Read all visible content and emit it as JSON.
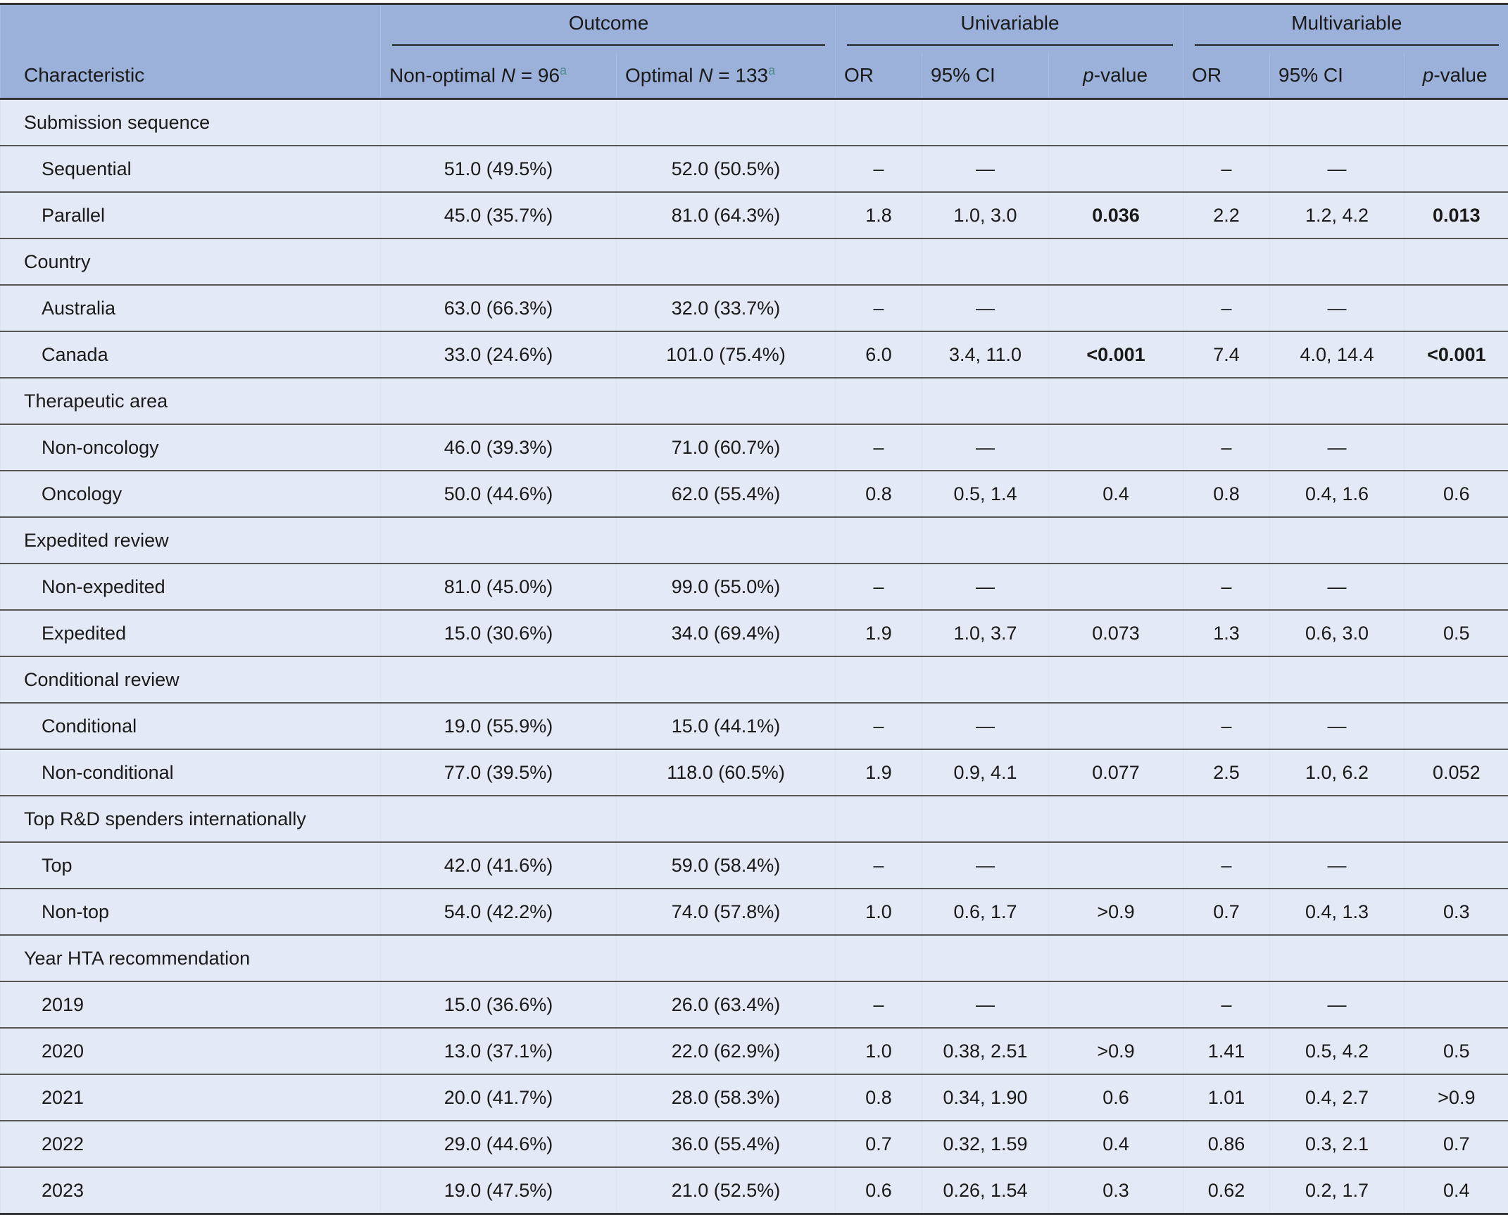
{
  "header": {
    "groups": {
      "outcome": "Outcome",
      "univariable": "Univariable",
      "multivariable": "Multivariable"
    },
    "columns": {
      "characteristic": "Characteristic",
      "non_optimal": "Non-optimal ",
      "non_optimal_n": "N",
      "non_optimal_n_value": " = 96",
      "non_optimal_note": "a",
      "optimal": "Optimal ",
      "optimal_n": "N",
      "optimal_n_value": " = 133",
      "optimal_note": "a",
      "uni_or": "OR",
      "uni_ci": "95% CI",
      "uni_p_italic": "p",
      "uni_p_rest": "-value",
      "multi_or": "OR",
      "multi_ci": "95% CI",
      "multi_p_italic": "p",
      "multi_p_rest": "-value"
    }
  },
  "colors": {
    "header_bg": "#9cb1da",
    "body_bg": "#e3e9f5",
    "footnote": "#4a8c8c"
  },
  "rows": [
    {
      "type": "group",
      "label": "Submission sequence"
    },
    {
      "type": "item",
      "label": "Sequential",
      "non_optimal": "51.0 (49.5%)",
      "optimal": "52.0 (50.5%)",
      "uni_or": "–",
      "uni_ci": "—",
      "uni_p": "",
      "multi_or": "–",
      "multi_ci": "—",
      "multi_p": ""
    },
    {
      "type": "item",
      "label": "Parallel",
      "non_optimal": "45.0 (35.7%)",
      "optimal": "81.0 (64.3%)",
      "uni_or": "1.8",
      "uni_ci": "1.0, 3.0",
      "uni_p": "0.036",
      "uni_p_bold": true,
      "multi_or": "2.2",
      "multi_ci": "1.2, 4.2",
      "multi_p": "0.013",
      "multi_p_bold": true
    },
    {
      "type": "group",
      "label": "Country"
    },
    {
      "type": "item",
      "label": "Australia",
      "non_optimal": "63.0 (66.3%)",
      "optimal": "32.0 (33.7%)",
      "uni_or": "–",
      "uni_ci": "—",
      "uni_p": "",
      "multi_or": "–",
      "multi_ci": "—",
      "multi_p": ""
    },
    {
      "type": "item",
      "label": "Canada",
      "non_optimal": "33.0 (24.6%)",
      "optimal": "101.0 (75.4%)",
      "uni_or": "6.0",
      "uni_ci": "3.4, 11.0",
      "uni_p": "<0.001",
      "uni_p_bold": true,
      "multi_or": "7.4",
      "multi_ci": "4.0, 14.4",
      "multi_p": "<0.001",
      "multi_p_bold": true
    },
    {
      "type": "group",
      "label": "Therapeutic area"
    },
    {
      "type": "item",
      "label": "Non-oncology",
      "non_optimal": "46.0 (39.3%)",
      "optimal": "71.0 (60.7%)",
      "uni_or": "–",
      "uni_ci": "—",
      "uni_p": "",
      "multi_or": "–",
      "multi_ci": "—",
      "multi_p": ""
    },
    {
      "type": "item",
      "label": "Oncology",
      "non_optimal": "50.0 (44.6%)",
      "optimal": "62.0 (55.4%)",
      "uni_or": "0.8",
      "uni_ci": "0.5, 1.4",
      "uni_p": "0.4",
      "multi_or": "0.8",
      "multi_ci": "0.4, 1.6",
      "multi_p": "0.6"
    },
    {
      "type": "group",
      "label": "Expedited review"
    },
    {
      "type": "item",
      "label": "Non-expedited",
      "non_optimal": "81.0 (45.0%)",
      "optimal": "99.0 (55.0%)",
      "uni_or": "–",
      "uni_ci": "—",
      "uni_p": "",
      "multi_or": "–",
      "multi_ci": "—",
      "multi_p": ""
    },
    {
      "type": "item",
      "label": "Expedited",
      "non_optimal": "15.0 (30.6%)",
      "optimal": "34.0 (69.4%)",
      "uni_or": "1.9",
      "uni_ci": "1.0, 3.7",
      "uni_p": "0.073",
      "multi_or": "1.3",
      "multi_ci": "0.6, 3.0",
      "multi_p": "0.5"
    },
    {
      "type": "group",
      "label": "Conditional review"
    },
    {
      "type": "item",
      "label": "Conditional",
      "non_optimal": "19.0 (55.9%)",
      "optimal": "15.0 (44.1%)",
      "uni_or": "–",
      "uni_ci": "—",
      "uni_p": "",
      "multi_or": "–",
      "multi_ci": "—",
      "multi_p": ""
    },
    {
      "type": "item",
      "label": "Non-conditional",
      "non_optimal": "77.0 (39.5%)",
      "optimal": "118.0 (60.5%)",
      "uni_or": "1.9",
      "uni_ci": "0.9, 4.1",
      "uni_p": "0.077",
      "multi_or": "2.5",
      "multi_ci": "1.0, 6.2",
      "multi_p": "0.052"
    },
    {
      "type": "group",
      "label": "Top R&D spenders internationally"
    },
    {
      "type": "item",
      "label": "Top",
      "non_optimal": "42.0 (41.6%)",
      "optimal": "59.0 (58.4%)",
      "uni_or": "–",
      "uni_ci": "—",
      "uni_p": "",
      "multi_or": "–",
      "multi_ci": "—",
      "multi_p": ""
    },
    {
      "type": "item",
      "label": "Non-top",
      "non_optimal": "54.0 (42.2%)",
      "optimal": "74.0 (57.8%)",
      "uni_or": "1.0",
      "uni_ci": "0.6, 1.7",
      "uni_p": ">0.9",
      "multi_or": "0.7",
      "multi_ci": "0.4, 1.3",
      "multi_p": "0.3"
    },
    {
      "type": "group",
      "label": "Year HTA recommendation"
    },
    {
      "type": "item",
      "label": "2019",
      "non_optimal": "15.0 (36.6%)",
      "optimal": "26.0 (63.4%)",
      "uni_or": "–",
      "uni_ci": "—",
      "uni_p": "",
      "multi_or": "–",
      "multi_ci": "—",
      "multi_p": ""
    },
    {
      "type": "item",
      "label": "2020",
      "non_optimal": "13.0 (37.1%)",
      "optimal": "22.0 (62.9%)",
      "uni_or": "1.0",
      "uni_ci": "0.38, 2.51",
      "uni_p": ">0.9",
      "multi_or": "1.41",
      "multi_ci": "0.5, 4.2",
      "multi_p": "0.5"
    },
    {
      "type": "item",
      "label": "2021",
      "non_optimal": "20.0 (41.7%)",
      "optimal": "28.0 (58.3%)",
      "uni_or": "0.8",
      "uni_ci": "0.34, 1.90",
      "uni_p": "0.6",
      "multi_or": "1.01",
      "multi_ci": "0.4, 2.7",
      "multi_p": ">0.9"
    },
    {
      "type": "item",
      "label": "2022",
      "non_optimal": "29.0 (44.6%)",
      "optimal": "36.0 (55.4%)",
      "uni_or": "0.7",
      "uni_ci": "0.32, 1.59",
      "uni_p": "0.4",
      "multi_or": "0.86",
      "multi_ci": "0.3, 2.1",
      "multi_p": "0.7"
    },
    {
      "type": "item",
      "label": "2023",
      "non_optimal": "19.0 (47.5%)",
      "optimal": "21.0 (52.5%)",
      "uni_or": "0.6",
      "uni_ci": "0.26, 1.54",
      "uni_p": "0.3",
      "multi_or": "0.62",
      "multi_ci": "0.2, 1.7",
      "multi_p": "0.4"
    }
  ]
}
